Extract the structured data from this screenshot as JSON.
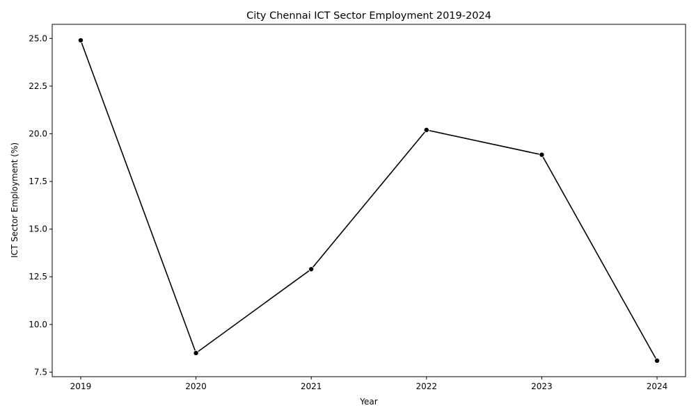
{
  "chart_data": {
    "type": "line",
    "title": "City Chennai ICT Sector Employment 2019-2024",
    "xlabel": "Year",
    "ylabel": "ICT Sector Employment (%)",
    "x": [
      "2019",
      "2020",
      "2021",
      "2022",
      "2023",
      "2024"
    ],
    "series": [
      {
        "values": [
          24.9,
          8.5,
          12.9,
          20.2,
          18.9,
          8.1
        ]
      }
    ],
    "yticks": [
      "7.5",
      "10.0",
      "12.5",
      "15.0",
      "17.5",
      "20.0",
      "22.5",
      "25.0"
    ],
    "ylim": [
      7.26,
      25.74
    ],
    "grid": false,
    "markers": true,
    "line_color": "#000000"
  }
}
